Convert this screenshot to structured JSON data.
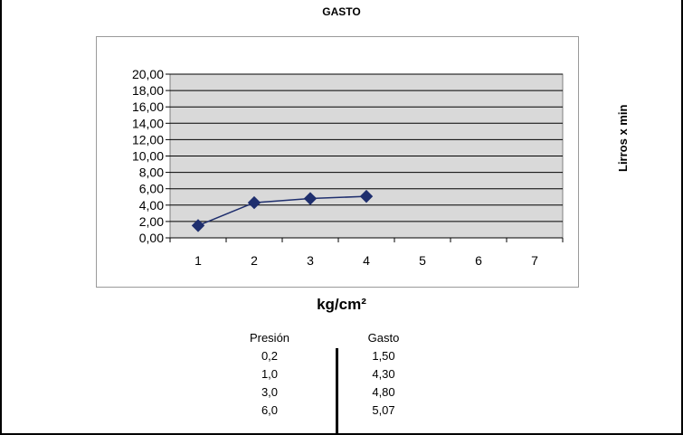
{
  "chart_data": {
    "type": "line",
    "title": "GASTO",
    "xlabel": "kg/cm²",
    "ylabel": "Lirros x min",
    "categories": [
      "1",
      "2",
      "3",
      "4",
      "5",
      "6",
      "7"
    ],
    "x": [
      1,
      2,
      3,
      4
    ],
    "series": [
      {
        "values": [
          1.5,
          4.3,
          4.8,
          5.07
        ]
      }
    ],
    "ylim": [
      0,
      20
    ],
    "yticks": [
      "0,00",
      "2,00",
      "4,00",
      "6,00",
      "8,00",
      "10,00",
      "12,00",
      "14,00",
      "16,00",
      "18,00",
      "20,00"
    ],
    "grid": true,
    "legend": "none",
    "colors": {
      "series": "#1f2f6e",
      "plot_bg": "#d9d9d9",
      "grid": "#000000"
    }
  },
  "table": {
    "headers": [
      "Presión",
      "Gasto"
    ],
    "presion": [
      "0,2",
      "1,0",
      "3,0",
      "6,0"
    ],
    "gasto": [
      "1,50",
      "4,30",
      "4,80",
      "5,07"
    ]
  }
}
